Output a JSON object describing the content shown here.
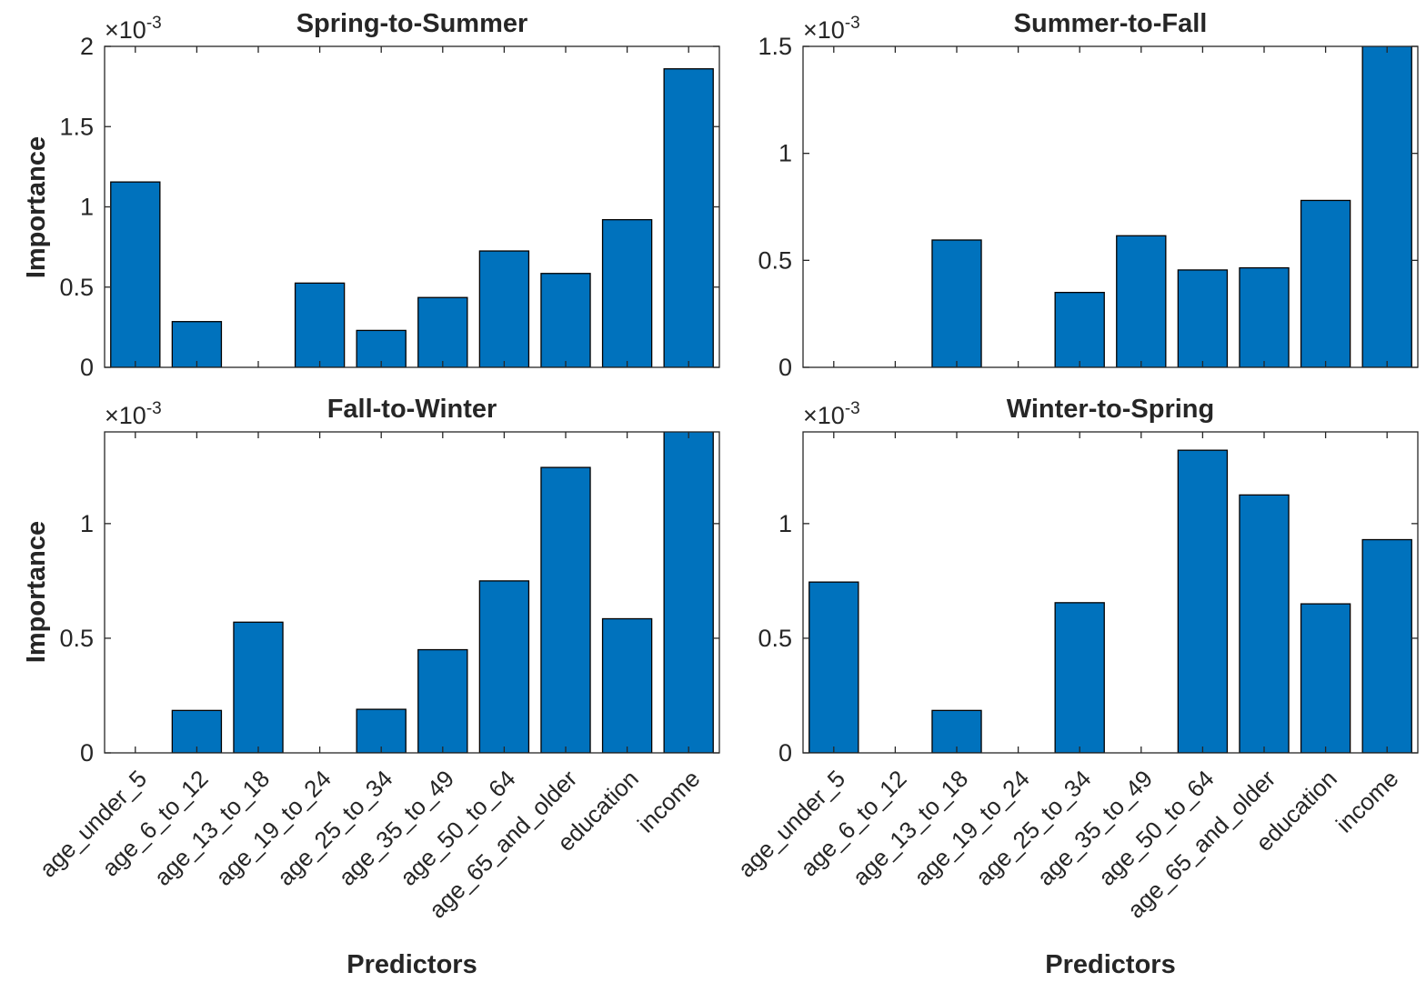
{
  "chart_data": [
    {
      "type": "bar",
      "title": "Spring-to-Summer",
      "ylabel": "Importance",
      "xlabel": "",
      "exponent_label": "×10",
      "exponent_power": "-3",
      "categories": [
        "age_under_5",
        "age_6_to_12",
        "age_13_to_18",
        "age_19_to_24",
        "age_25_to_34",
        "age_35_to_49",
        "age_50_to_64",
        "age_65_and_older",
        "education",
        "income"
      ],
      "show_category_labels": false,
      "values": [
        1.155,
        0.285,
        0,
        0.525,
        0.23,
        0.435,
        0.725,
        0.585,
        0.92,
        1.86
      ],
      "ylim": [
        0,
        2
      ],
      "yticks": [
        0,
        0.5,
        1,
        1.5,
        2
      ],
      "ytick_labels": [
        "0",
        "0.5",
        "1",
        "1.5",
        "2"
      ],
      "bar_color": "#0072BD",
      "grid": false
    },
    {
      "type": "bar",
      "title": "Summer-to-Fall",
      "ylabel": "",
      "xlabel": "",
      "exponent_label": "×10",
      "exponent_power": "-3",
      "categories": [
        "age_under_5",
        "age_6_to_12",
        "age_13_to_18",
        "age_19_to_24",
        "age_25_to_34",
        "age_35_to_49",
        "age_50_to_64",
        "age_65_and_older",
        "education",
        "income"
      ],
      "show_category_labels": false,
      "values": [
        0,
        0,
        0.595,
        0,
        0.35,
        0.615,
        0.455,
        0.465,
        0.78,
        1.6
      ],
      "ylim": [
        0,
        1.5
      ],
      "yticks": [
        0,
        0.5,
        1,
        1.5
      ],
      "ytick_labels": [
        "0",
        "0.5",
        "1",
        "1.5"
      ],
      "bar_color": "#0072BD",
      "grid": false
    },
    {
      "type": "bar",
      "title": "Fall-to-Winter",
      "ylabel": "Importance",
      "xlabel": "Predictors",
      "exponent_label": "×10",
      "exponent_power": "-3",
      "categories": [
        "age_under_5",
        "age_6_to_12",
        "age_13_to_18",
        "age_19_to_24",
        "age_25_to_34",
        "age_35_to_49",
        "age_50_to_64",
        "age_65_and_older",
        "education",
        "income"
      ],
      "show_category_labels": true,
      "values": [
        0,
        0.185,
        0.57,
        0,
        0.19,
        0.45,
        0.75,
        1.245,
        0.585,
        1.5
      ],
      "ylim": [
        0,
        1.4
      ],
      "yticks": [
        0,
        0.5,
        1
      ],
      "ytick_labels": [
        "0",
        "0.5",
        "1"
      ],
      "bar_color": "#0072BD",
      "grid": false
    },
    {
      "type": "bar",
      "title": "Winter-to-Spring",
      "ylabel": "",
      "xlabel": "Predictors",
      "exponent_label": "×10",
      "exponent_power": "-3",
      "categories": [
        "age_under_5",
        "age_6_to_12",
        "age_13_to_18",
        "age_19_to_24",
        "age_25_to_34",
        "age_35_to_49",
        "age_50_to_64",
        "age_65_and_older",
        "education",
        "income"
      ],
      "show_category_labels": true,
      "values": [
        0.745,
        0,
        0.185,
        0,
        0.655,
        0,
        1.32,
        1.125,
        0.65,
        0.93
      ],
      "ylim": [
        0,
        1.4
      ],
      "yticks": [
        0,
        0.5,
        1
      ],
      "ytick_labels": [
        "0",
        "0.5",
        "1"
      ],
      "bar_color": "#0072BD",
      "grid": false
    }
  ]
}
